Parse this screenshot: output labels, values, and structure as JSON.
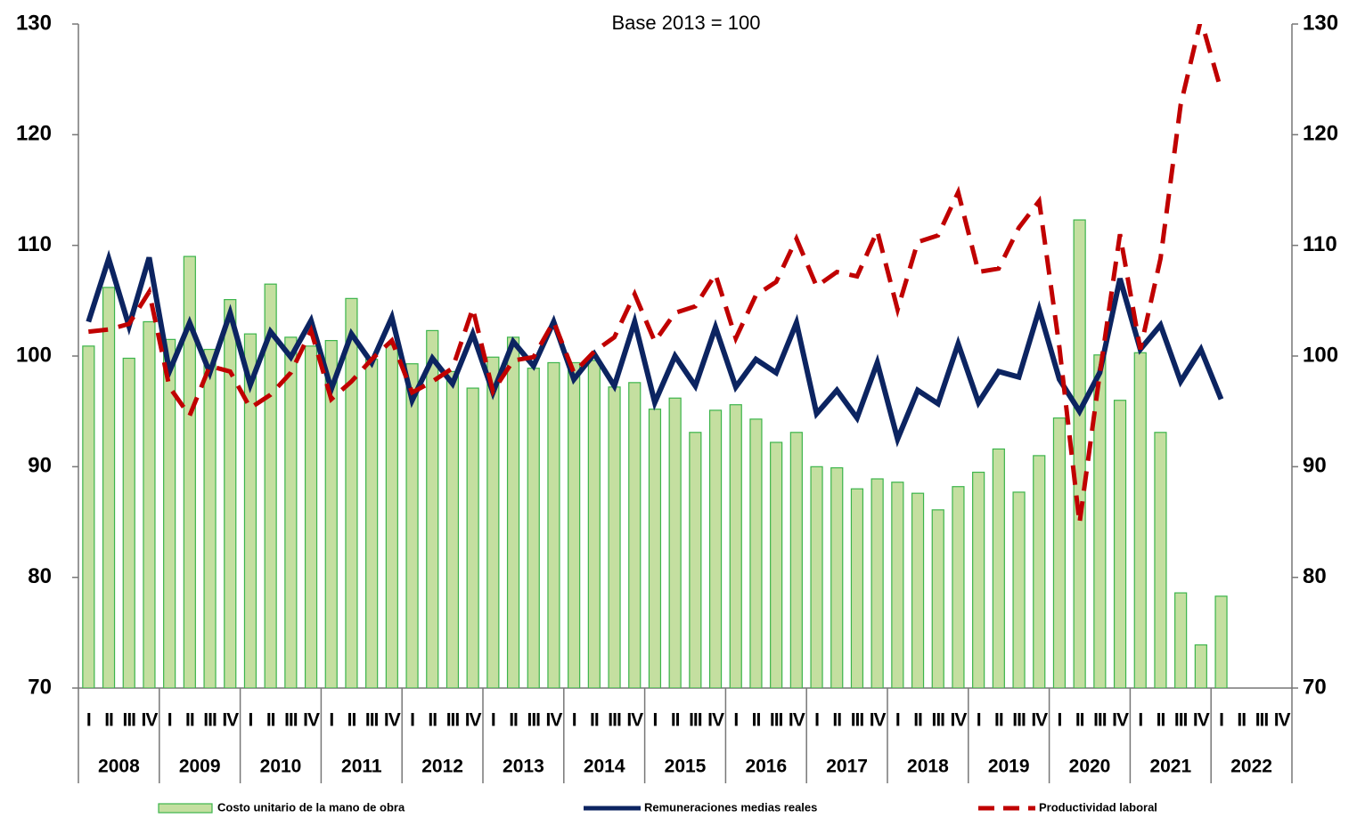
{
  "chart_data": {
    "type": "bar-line",
    "subtitle": "Base 2013 = 100",
    "categories": [
      "I",
      "II",
      "III",
      "IV",
      "I",
      "II",
      "III",
      "IV",
      "I",
      "II",
      "III",
      "IV",
      "I",
      "II",
      "III",
      "IV",
      "I",
      "II",
      "III",
      "IV",
      "I",
      "II",
      "III",
      "IV",
      "I",
      "II",
      "III",
      "IV",
      "I",
      "II",
      "III",
      "IV",
      "I",
      "II",
      "III",
      "IV",
      "I",
      "II",
      "III",
      "IV",
      "I",
      "II",
      "III",
      "IV",
      "I",
      "II",
      "III",
      "IV",
      "I",
      "II",
      "III",
      "IV",
      "I",
      "II",
      "III",
      "IV",
      "I",
      "II",
      "III",
      "IV"
    ],
    "years": [
      "2008",
      "2009",
      "2010",
      "2011",
      "2012",
      "2013",
      "2014",
      "2015",
      "2016",
      "2017",
      "2018",
      "2019",
      "2020",
      "2021",
      "2022"
    ],
    "series": [
      {
        "name": "Costo unitario de la mano de obra",
        "kind": "bar",
        "color": "#c4dfa0",
        "edge": "#3cb44b",
        "values": [
          100.9,
          106.2,
          99.8,
          103.1,
          101.5,
          109.0,
          100.6,
          105.1,
          102.0,
          106.5,
          101.7,
          100.9,
          101.4,
          105.2,
          99.7,
          101.0,
          99.3,
          102.3,
          98.6,
          97.1,
          99.9,
          101.7,
          98.9,
          99.4,
          99.4,
          99.6,
          97.2,
          97.6,
          95.2,
          96.2,
          93.1,
          95.1,
          95.6,
          94.3,
          92.2,
          93.1,
          90.0,
          89.9,
          88.0,
          88.9,
          88.6,
          87.6,
          86.1,
          88.2,
          89.5,
          91.6,
          87.7,
          91.0,
          94.4,
          112.3,
          100.1,
          96.0,
          100.3,
          93.1,
          78.6,
          73.9,
          78.3,
          null,
          null,
          null
        ]
      },
      {
        "name": "Remuneraciones medias reales",
        "kind": "line",
        "color": "#0c2461",
        "dash": false,
        "values": [
          103.1,
          108.8,
          102.7,
          108.9,
          98.6,
          103.0,
          98.5,
          103.9,
          97.4,
          102.2,
          99.9,
          103.2,
          97.0,
          102.0,
          99.4,
          103.5,
          96.0,
          99.8,
          97.5,
          102.0,
          96.7,
          101.3,
          99.1,
          103.1,
          97.9,
          100.2,
          97.3,
          103.1,
          95.8,
          100.0,
          97.3,
          102.6,
          97.2,
          99.7,
          98.5,
          103.0,
          94.8,
          96.9,
          94.4,
          99.4,
          92.5,
          96.9,
          95.7,
          101.1,
          95.8,
          98.6,
          98.1,
          104.2,
          97.9,
          95.0,
          98.5,
          107.0,
          100.6,
          102.8,
          97.7,
          100.6,
          96.1,
          null,
          null,
          null
        ]
      },
      {
        "name": "Productividad laboral",
        "kind": "line",
        "color": "#c00000",
        "dash": true,
        "values": [
          102.2,
          102.4,
          102.9,
          105.8,
          97.2,
          94.6,
          99.1,
          98.6,
          95.3,
          96.5,
          98.5,
          102.3,
          96.1,
          97.7,
          99.7,
          101.4,
          96.7,
          97.7,
          98.9,
          104.3,
          96.8,
          99.6,
          99.9,
          103.1,
          98.5,
          100.4,
          101.7,
          105.6,
          101.3,
          103.9,
          104.5,
          107.4,
          101.6,
          105.5,
          106.7,
          110.6,
          106.3,
          107.6,
          107.2,
          111.3,
          104.2,
          110.3,
          110.9,
          114.8,
          107.6,
          107.9,
          111.6,
          114.0,
          100.8,
          84.9,
          98.4,
          111.0,
          100.6,
          108.8,
          122.7,
          130.4,
          124.0,
          null,
          null,
          null
        ]
      }
    ],
    "ylim": [
      70,
      130
    ],
    "yticks": [
      70,
      80,
      90,
      100,
      110,
      120,
      130
    ],
    "y2lim": [
      70,
      130
    ],
    "y2ticks": [
      70,
      80,
      90,
      100,
      110,
      120,
      130
    ],
    "grid": false
  }
}
